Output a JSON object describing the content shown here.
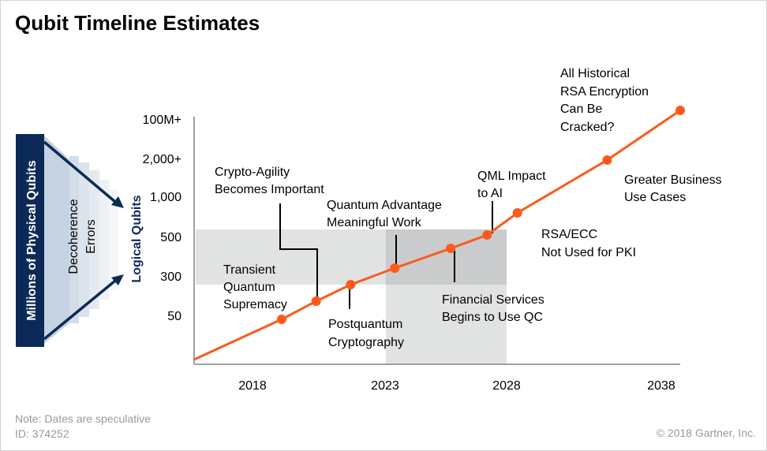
{
  "title": "Qubit Timeline Estimates",
  "footer": {
    "note": "Note: Dates are speculative",
    "id": "ID: 374252",
    "copyright": "© 2018 Gartner, Inc."
  },
  "colors": {
    "line": "#fc5a1c",
    "navy": "#0c2a57",
    "band_light": "#e1e3e3",
    "band_dark": "#c9cbcc",
    "axis": "#a0a0a0"
  },
  "left_graphic": {
    "physical_label": "Millions of Physical Qubits",
    "middle_label_line1": "Decoherence",
    "middle_label_line2": "Errors",
    "logical_label": "Logical Qubits"
  },
  "chart_data": {
    "type": "line",
    "title": "Qubit Timeline Estimates",
    "xlabel": "",
    "ylabel": "Logical Qubits",
    "x_ticks": [
      "2018",
      "2023",
      "2028",
      "2038"
    ],
    "y_ticks": [
      "50",
      "300",
      "500",
      "1,000",
      "2,000+",
      "100M+"
    ],
    "grid": false,
    "series": [
      {
        "name": "Logical qubit estimate",
        "points": [
          {
            "x": 2019.1,
            "y": "50"
          },
          {
            "x": 2020.4,
            "y": "~150"
          },
          {
            "x": 2021.7,
            "y": "300"
          },
          {
            "x": 2023.4,
            "y": "~400"
          },
          {
            "x": 2025.7,
            "y": "~450"
          },
          {
            "x": 2027.2,
            "y": "500"
          },
          {
            "x": 2028.7,
            "y": "~750"
          },
          {
            "x": 2034.5,
            "y": "2,000+"
          },
          {
            "x": 2039.0,
            "y": "100M+"
          }
        ]
      }
    ],
    "annotations": [
      {
        "lines": [
          "Transient",
          "Quantum",
          "Supremacy"
        ]
      },
      {
        "lines": [
          "Crypto-Agility",
          "Becomes Important"
        ]
      },
      {
        "lines": [
          "Postquantum",
          "Cryptography"
        ]
      },
      {
        "lines": [
          "Quantum Advantage",
          "Meaningful Work"
        ]
      },
      {
        "lines": [
          "Financial Services",
          "Begins to Use QC"
        ]
      },
      {
        "lines": [
          "QML Impact",
          "to AI"
        ]
      },
      {
        "lines": [
          "RSA/ECC",
          "Not Used for PKI"
        ]
      },
      {
        "lines": [
          "Greater Business",
          "Use Cases"
        ]
      },
      {
        "lines": [
          "All Historical",
          "RSA Encryption",
          "Can Be",
          "Cracked?"
        ]
      }
    ],
    "shaded_regions": [
      {
        "name": "300-500 logical qubit band",
        "y_range": [
          "300",
          "500"
        ],
        "x_range": [
          "start",
          "2028"
        ]
      },
      {
        "name": "2023-2028 window",
        "x_range": [
          "2023",
          "2028"
        ]
      }
    ]
  }
}
